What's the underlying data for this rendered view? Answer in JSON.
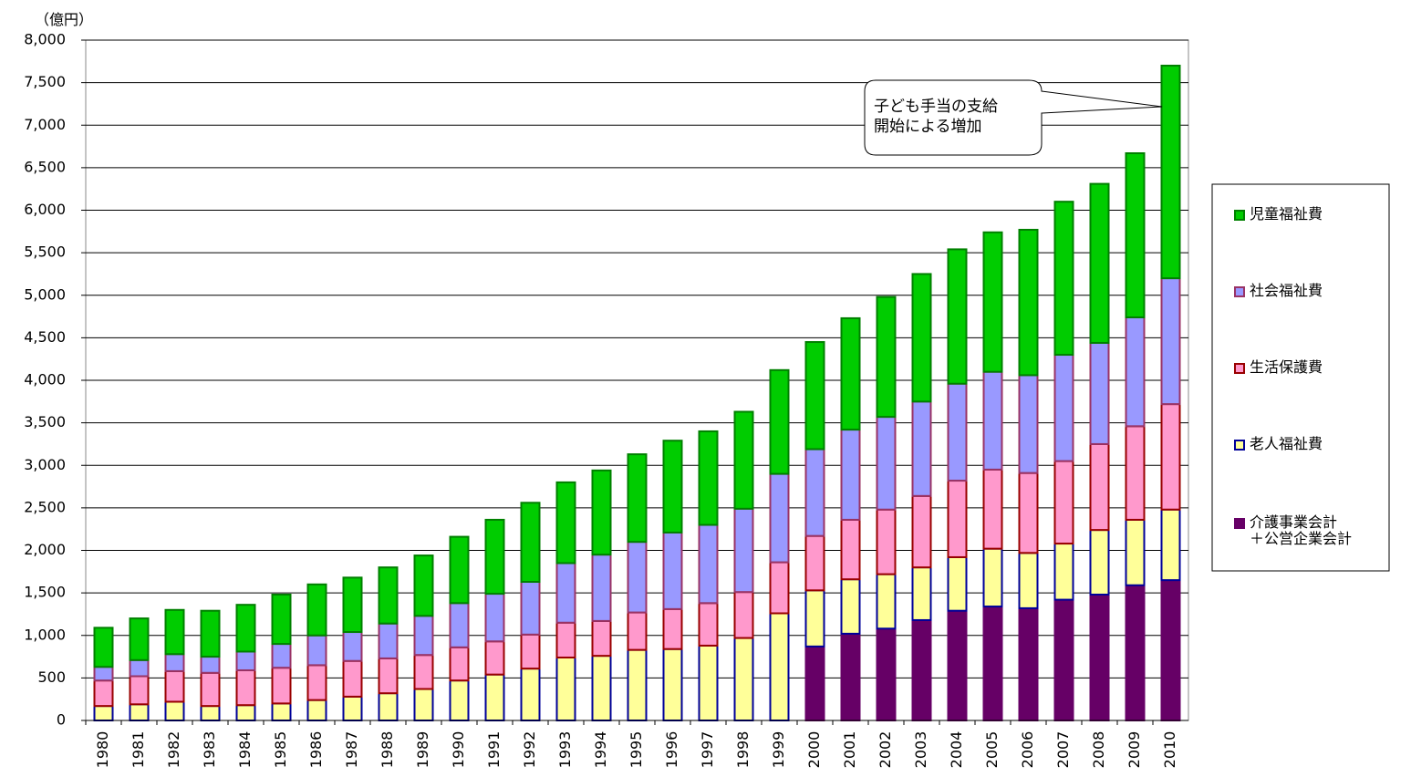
{
  "chart_data": {
    "type": "bar",
    "stacked": true,
    "unit_label": "（億円）",
    "annotation": "子ども手当の支給\n開始による増加",
    "categories": [
      "1980",
      "1981",
      "1982",
      "1983",
      "1984",
      "1985",
      "1986",
      "1987",
      "1988",
      "1989",
      "1990",
      "1991",
      "1992",
      "1993",
      "1994",
      "1995",
      "1996",
      "1997",
      "1998",
      "1999",
      "2000",
      "2001",
      "2002",
      "2003",
      "2004",
      "2005",
      "2006",
      "2007",
      "2008",
      "2009",
      "2010"
    ],
    "series": [
      {
        "name": "介護事業会計\n＋公営企業会計",
        "color": "#660066",
        "values": [
          null,
          null,
          null,
          null,
          null,
          null,
          null,
          null,
          null,
          null,
          null,
          null,
          null,
          null,
          null,
          null,
          null,
          null,
          null,
          null,
          870,
          1020,
          1080,
          1180,
          1290,
          1340,
          1320,
          1420,
          1480,
          1590,
          1650
        ]
      },
      {
        "name": "老人福祉費",
        "color": "#ffff99",
        "values": [
          170,
          190,
          220,
          170,
          180,
          200,
          240,
          280,
          320,
          370,
          470,
          540,
          610,
          740,
          760,
          830,
          840,
          880,
          970,
          1260,
          660,
          640,
          640,
          620,
          630,
          680,
          650,
          660,
          760,
          770,
          830
        ]
      },
      {
        "name": "生活保護費",
        "color": "#ff99cc",
        "values": [
          300,
          330,
          360,
          390,
          410,
          420,
          410,
          420,
          410,
          400,
          390,
          390,
          400,
          410,
          410,
          440,
          470,
          500,
          540,
          600,
          640,
          700,
          760,
          840,
          900,
          930,
          940,
          970,
          1010,
          1100,
          1240
        ]
      },
      {
        "name": "社会福祉費",
        "color": "#9999ff",
        "values": [
          160,
          190,
          200,
          190,
          220,
          280,
          350,
          340,
          410,
          460,
          520,
          560,
          620,
          700,
          780,
          830,
          900,
          920,
          980,
          1040,
          1020,
          1060,
          1090,
          1110,
          1140,
          1150,
          1150,
          1250,
          1190,
          1280,
          1480
        ]
      },
      {
        "name": "児童福祉費",
        "color": "#00cc00",
        "values": [
          460,
          490,
          520,
          540,
          550,
          580,
          600,
          640,
          660,
          710,
          780,
          870,
          930,
          950,
          990,
          1030,
          1080,
          1100,
          1140,
          1220,
          1260,
          1310,
          1410,
          1500,
          1580,
          1640,
          1710,
          1800,
          1870,
          1930,
          2500
        ]
      }
    ],
    "ylim": [
      0,
      8000
    ],
    "yticks": [
      0,
      500,
      {
        "value": 1000,
        "label": "1,000"
      },
      {
        "value": 1500,
        "label": "1,500"
      },
      {
        "value": 2000,
        "label": "2,000"
      },
      {
        "value": 2500,
        "label": "2,500"
      },
      {
        "value": 3000,
        "label": "3,000"
      },
      {
        "value": 3500,
        "label": "3,500"
      },
      {
        "value": 4000,
        "label": "4,000"
      },
      {
        "value": 4500,
        "label": "4,500"
      },
      {
        "value": 5000,
        "label": "5,000"
      },
      {
        "value": 5500,
        "label": "5,500"
      },
      {
        "value": 6000,
        "label": "6,000"
      },
      {
        "value": 6500,
        "label": "6,500"
      },
      {
        "value": 7000,
        "label": "7,000"
      },
      {
        "value": 7500,
        "label": "7,500"
      },
      {
        "value": 8000,
        "label": "8,000"
      }
    ],
    "grid": true
  }
}
